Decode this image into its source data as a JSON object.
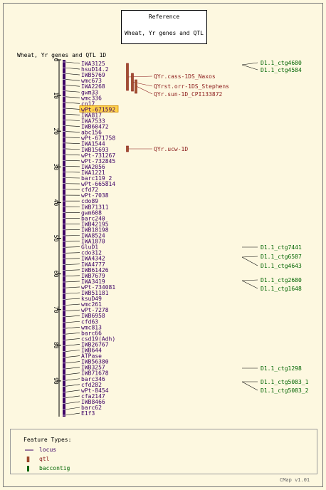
{
  "reference": {
    "title": "Reference",
    "map_name": "Wheat, Yr genes and QTL"
  },
  "map_title": "Wheat, Yr genes and QTL 1D",
  "scale": {
    "min": 0,
    "max": 100,
    "ticks": [
      0,
      10,
      20,
      30,
      40,
      50,
      60,
      70,
      80,
      90
    ]
  },
  "highlighted_marker": "wPt-671592",
  "markers": [
    "IWA3125",
    "hsuD14.2",
    "IWB5769",
    "wmc673",
    "IWA2268",
    "gwm33",
    "wmc336",
    "cn17",
    "wPt-671592",
    "IWA817",
    "IWA7533",
    "IWB60472",
    "abc156",
    "wPt-671758",
    "IWA1544",
    "IWB15693",
    "wPt-731267",
    "wPt-732845",
    "IWA2056",
    "IWA1221",
    "barc119_2",
    "wPt-665814",
    "cfd72",
    "wPt-7038",
    "cdo89",
    "IWB71311",
    "gwm608",
    "barc240",
    "IWB42195",
    "IWB18198",
    "IWA8524",
    "IWA1870",
    "GluD1",
    "cdo312",
    "IWA4342",
    "IWA4777",
    "IWB61426",
    "IWB7679",
    "IWA3419",
    "wPt-734081",
    "IWB51181",
    "ksuD49",
    "wmc261",
    "wPt-7278",
    "IWB6958",
    "cfd63",
    "wmc813",
    "barc66",
    "csd19(Adh)",
    "IWB26767",
    "IWB644",
    "ATPase",
    "IWB56380",
    "IWB3257",
    "IWB71678",
    "barc346",
    "cfd282",
    "wPt-8454",
    "cfa2147",
    "IWB8466",
    "barc62",
    "E1f3"
  ],
  "qtls": [
    {
      "label": "QYr.cass-1DS_Naxos"
    },
    {
      "label": "QYrst.orr-1DS_Stephens"
    },
    {
      "label": "QYr.sun-1D_CPI133872"
    },
    {
      "label": "QYr.ucw-1D"
    }
  ],
  "contigs": [
    "D1.1_ctg4680",
    "D1.1_ctg4584",
    "D1.1_ctg7441",
    "D1.1_ctg6587",
    "D1.1_ctg4643",
    "D1.1_ctg2680",
    "D1.1_ctg1648",
    "D1.1_ctg1298",
    "D1.1_ctg5083_1",
    "D1.1_ctg5083_2"
  ],
  "legend": {
    "title": "Feature Types:",
    "items": [
      "locus",
      "qtl",
      "baccontig"
    ]
  },
  "footer": "CMap v1.01",
  "colors": {
    "locus": "#3d0066",
    "qtl": "#8b1a1a",
    "qtl_fill": "#a0522d",
    "contig": "#006400",
    "highlight": "#ffd24a",
    "line": "#000000"
  }
}
